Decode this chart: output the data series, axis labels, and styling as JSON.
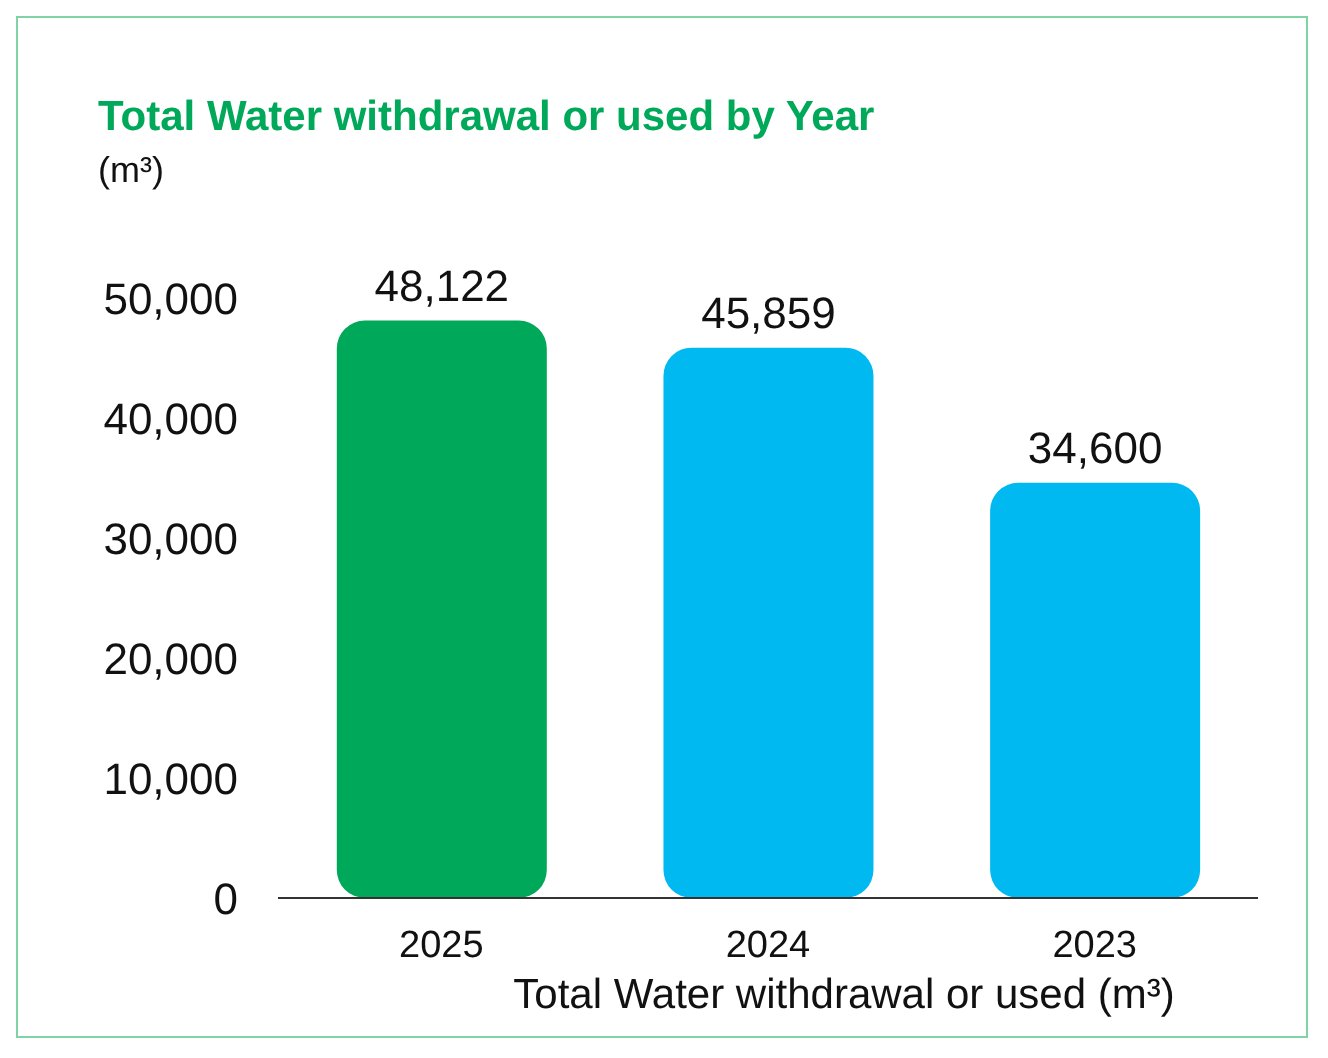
{
  "chart_data": {
    "type": "bar",
    "title": "Total Water withdrawal or used by Year",
    "ylabel": "(m³)",
    "xlabel": "Total Water withdrawal or used (m³)",
    "categories": [
      "2025",
      "2024",
      "2023"
    ],
    "values": [
      48122,
      45859,
      34600
    ],
    "colors": [
      "#00a859",
      "#00b9f1",
      "#00b9f1"
    ],
    "value_labels": [
      "48,122",
      "45,859",
      "34,600"
    ],
    "ylim": [
      0,
      50000
    ],
    "yticks": [
      0,
      {
        "value": 10000,
        "label": "10,000"
      },
      {
        "value": 20000,
        "label": "20,000"
      },
      {
        "value": 30000,
        "label": "30,000"
      },
      {
        "value": 40000,
        "label": "40,000"
      },
      {
        "value": 50000,
        "label": "50,000"
      }
    ],
    "grid": false,
    "legend": false
  }
}
